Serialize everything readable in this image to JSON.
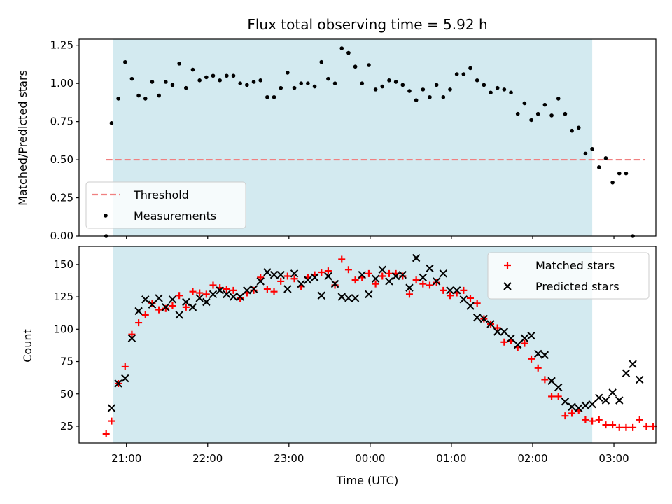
{
  "title": "Flux total observing time = 5.92 h",
  "colors": {
    "observing_band": "#d3eaf0",
    "threshold": "#f08080",
    "measurement": "#000000",
    "matched": "#ff0000",
    "predicted": "#000000"
  },
  "chart_data": [
    {
      "type": "scatter",
      "panel": "top",
      "ylabel": "Matched/Predicted stars",
      "xlim": [
        "20:25",
        "03:31"
      ],
      "ylim": [
        0,
        1.29
      ],
      "yticks": [
        0.0,
        0.25,
        0.5,
        0.75,
        1.0,
        1.25
      ],
      "ytick_labels": [
        "0.00",
        "0.25",
        "0.50",
        "0.75",
        "1.00",
        "1.25"
      ],
      "observing_band": [
        "20:50",
        "02:44"
      ],
      "threshold": {
        "name": "Threshold",
        "value": 0.5,
        "x_range": [
          "20:45",
          "03:23"
        ]
      },
      "legend": {
        "location": "lower-left",
        "entries": [
          "Threshold",
          "Measurements"
        ]
      },
      "series": [
        {
          "name": "Measurements",
          "points": [
            [
              "20:45",
              0.0
            ],
            [
              "20:49",
              0.74
            ],
            [
              "20:54",
              0.9
            ],
            [
              "20:59",
              1.14
            ],
            [
              "21:04",
              1.03
            ],
            [
              "21:09",
              0.92
            ],
            [
              "21:14",
              0.9
            ],
            [
              "21:19",
              1.01
            ],
            [
              "21:24",
              0.92
            ],
            [
              "21:29",
              1.01
            ],
            [
              "21:34",
              0.99
            ],
            [
              "21:39",
              1.13
            ],
            [
              "21:44",
              0.97
            ],
            [
              "21:49",
              1.09
            ],
            [
              "21:54",
              1.02
            ],
            [
              "21:59",
              1.04
            ],
            [
              "22:04",
              1.05
            ],
            [
              "22:09",
              1.02
            ],
            [
              "22:14",
              1.05
            ],
            [
              "22:19",
              1.05
            ],
            [
              "22:24",
              1.0
            ],
            [
              "22:29",
              0.99
            ],
            [
              "22:34",
              1.01
            ],
            [
              "22:39",
              1.02
            ],
            [
              "22:44",
              0.91
            ],
            [
              "22:49",
              0.91
            ],
            [
              "22:54",
              0.97
            ],
            [
              "22:59",
              1.07
            ],
            [
              "23:04",
              0.97
            ],
            [
              "23:09",
              1.0
            ],
            [
              "23:14",
              1.0
            ],
            [
              "23:19",
              0.98
            ],
            [
              "23:24",
              1.14
            ],
            [
              "23:29",
              1.03
            ],
            [
              "23:34",
              1.0
            ],
            [
              "23:39",
              1.23
            ],
            [
              "23:44",
              1.2
            ],
            [
              "23:49",
              1.11
            ],
            [
              "23:54",
              1.0
            ],
            [
              "23:59",
              1.12
            ],
            [
              "00:04",
              0.96
            ],
            [
              "00:09",
              0.98
            ],
            [
              "00:14",
              1.02
            ],
            [
              "00:19",
              1.01
            ],
            [
              "00:24",
              0.99
            ],
            [
              "00:29",
              0.95
            ],
            [
              "00:34",
              0.89
            ],
            [
              "00:39",
              0.96
            ],
            [
              "00:44",
              0.91
            ],
            [
              "00:49",
              0.99
            ],
            [
              "00:54",
              0.91
            ],
            [
              "00:59",
              0.96
            ],
            [
              "01:04",
              1.06
            ],
            [
              "01:09",
              1.06
            ],
            [
              "01:14",
              1.1
            ],
            [
              "01:19",
              1.02
            ],
            [
              "01:24",
              0.99
            ],
            [
              "01:29",
              0.94
            ],
            [
              "01:34",
              0.97
            ],
            [
              "01:39",
              0.96
            ],
            [
              "01:44",
              0.94
            ],
            [
              "01:49",
              0.8
            ],
            [
              "01:54",
              0.87
            ],
            [
              "01:59",
              0.76
            ],
            [
              "02:04",
              0.8
            ],
            [
              "02:09",
              0.86
            ],
            [
              "02:14",
              0.79
            ],
            [
              "02:19",
              0.9
            ],
            [
              "02:24",
              0.8
            ],
            [
              "02:29",
              0.69
            ],
            [
              "02:34",
              0.71
            ],
            [
              "02:39",
              0.54
            ],
            [
              "02:44",
              0.57
            ],
            [
              "02:49",
              0.45
            ],
            [
              "02:54",
              0.51
            ],
            [
              "02:59",
              0.35
            ],
            [
              "03:04",
              0.41
            ],
            [
              "03:09",
              0.41
            ],
            [
              "03:14",
              0.0
            ]
          ]
        }
      ]
    },
    {
      "type": "scatter",
      "panel": "bottom",
      "ylabel": "Count",
      "xlabel": "Time (UTC)",
      "xlim": [
        "20:25",
        "03:31"
      ],
      "ylim": [
        12,
        164
      ],
      "yticks": [
        25,
        50,
        75,
        100,
        125,
        150
      ],
      "ytick_labels": [
        "25",
        "50",
        "75",
        "100",
        "125",
        "150"
      ],
      "xtick_labels": [
        "21:00",
        "22:00",
        "23:00",
        "00:00",
        "01:00",
        "02:00",
        "03:00"
      ],
      "observing_band": [
        "20:50",
        "02:44"
      ],
      "legend": {
        "location": "top-right",
        "entries": [
          "Matched stars",
          "Predicted stars"
        ]
      },
      "series": [
        {
          "name": "Matched stars",
          "marker": "plus",
          "points": [
            [
              "20:45",
              19
            ],
            [
              "20:49",
              29
            ],
            [
              "20:54",
              58
            ],
            [
              "20:59",
              71
            ],
            [
              "21:04",
              96
            ],
            [
              "21:09",
              105
            ],
            [
              "21:14",
              111
            ],
            [
              "21:19",
              120
            ],
            [
              "21:24",
              115
            ],
            [
              "21:29",
              116
            ],
            [
              "21:34",
              118
            ],
            [
              "21:39",
              126
            ],
            [
              "21:44",
              117
            ],
            [
              "21:49",
              129
            ],
            [
              "21:54",
              128
            ],
            [
              "21:59",
              127
            ],
            [
              "22:04",
              134
            ],
            [
              "22:09",
              132
            ],
            [
              "22:14",
              131
            ],
            [
              "22:19",
              130
            ],
            [
              "22:24",
              124
            ],
            [
              "22:29",
              128
            ],
            [
              "22:34",
              130
            ],
            [
              "22:39",
              140
            ],
            [
              "22:44",
              131
            ],
            [
              "22:49",
              129
            ],
            [
              "22:54",
              137
            ],
            [
              "22:59",
              141
            ],
            [
              "23:04",
              139
            ],
            [
              "23:09",
              133
            ],
            [
              "23:14",
              140
            ],
            [
              "23:19",
              142
            ],
            [
              "23:24",
              144
            ],
            [
              "23:29",
              145
            ],
            [
              "23:34",
              134
            ],
            [
              "23:39",
              154
            ],
            [
              "23:44",
              146
            ],
            [
              "23:49",
              138
            ],
            [
              "23:54",
              140
            ],
            [
              "23:59",
              143
            ],
            [
              "00:04",
              135
            ],
            [
              "00:09",
              141
            ],
            [
              "00:14",
              143
            ],
            [
              "00:19",
              143
            ],
            [
              "00:24",
              141
            ],
            [
              "00:29",
              127
            ],
            [
              "00:34",
              138
            ],
            [
              "00:39",
              135
            ],
            [
              "00:44",
              134
            ],
            [
              "00:49",
              136
            ],
            [
              "00:54",
              130
            ],
            [
              "00:59",
              126
            ],
            [
              "01:04",
              128
            ],
            [
              "01:09",
              130
            ],
            [
              "01:14",
              124
            ],
            [
              "01:19",
              120
            ],
            [
              "01:24",
              108
            ],
            [
              "01:29",
              104
            ],
            [
              "01:34",
              101
            ],
            [
              "01:39",
              90
            ],
            [
              "01:44",
              91
            ],
            [
              "01:49",
              86
            ],
            [
              "01:54",
              89
            ],
            [
              "01:59",
              77
            ],
            [
              "02:04",
              70
            ],
            [
              "02:09",
              61
            ],
            [
              "02:14",
              48
            ],
            [
              "02:19",
              48
            ],
            [
              "02:24",
              33
            ],
            [
              "02:29",
              35
            ],
            [
              "02:34",
              37
            ],
            [
              "02:39",
              30
            ],
            [
              "02:44",
              29
            ],
            [
              "02:49",
              30
            ],
            [
              "02:54",
              26
            ],
            [
              "02:59",
              26
            ],
            [
              "03:04",
              24
            ],
            [
              "03:09",
              24
            ],
            [
              "03:14",
              24
            ],
            [
              "03:19",
              30
            ],
            [
              "03:24",
              25
            ],
            [
              "03:29",
              25
            ]
          ]
        },
        {
          "name": "Predicted stars",
          "marker": "x",
          "points": [
            [
              "20:49",
              39
            ],
            [
              "20:54",
              58
            ],
            [
              "20:59",
              62
            ],
            [
              "21:04",
              93
            ],
            [
              "21:09",
              114
            ],
            [
              "21:14",
              123
            ],
            [
              "21:19",
              119
            ],
            [
              "21:24",
              124
            ],
            [
              "21:29",
              117
            ],
            [
              "21:34",
              123
            ],
            [
              "21:39",
              111
            ],
            [
              "21:44",
              121
            ],
            [
              "21:49",
              117
            ],
            [
              "21:54",
              124
            ],
            [
              "21:59",
              121
            ],
            [
              "22:04",
              127
            ],
            [
              "22:09",
              130
            ],
            [
              "22:14",
              127
            ],
            [
              "22:19",
              125
            ],
            [
              "22:24",
              125
            ],
            [
              "22:29",
              130
            ],
            [
              "22:34",
              131
            ],
            [
              "22:39",
              137
            ],
            [
              "22:44",
              144
            ],
            [
              "22:49",
              142
            ],
            [
              "22:54",
              142
            ],
            [
              "22:59",
              131
            ],
            [
              "23:04",
              143
            ],
            [
              "23:09",
              135
            ],
            [
              "23:14",
              138
            ],
            [
              "23:19",
              140
            ],
            [
              "23:24",
              126
            ],
            [
              "23:29",
              141
            ],
            [
              "23:34",
              135
            ],
            [
              "23:39",
              125
            ],
            [
              "23:44",
              124
            ],
            [
              "23:49",
              124
            ],
            [
              "23:54",
              142
            ],
            [
              "23:59",
              127
            ],
            [
              "00:04",
              139
            ],
            [
              "00:09",
              146
            ],
            [
              "00:14",
              137
            ],
            [
              "00:19",
              141
            ],
            [
              "00:24",
              142
            ],
            [
              "00:29",
              132
            ],
            [
              "00:34",
              155
            ],
            [
              "00:39",
              140
            ],
            [
              "00:44",
              147
            ],
            [
              "00:49",
              137
            ],
            [
              "00:54",
              143
            ],
            [
              "00:59",
              130
            ],
            [
              "01:04",
              130
            ],
            [
              "01:09",
              123
            ],
            [
              "01:14",
              118
            ],
            [
              "01:19",
              109
            ],
            [
              "01:24",
              108
            ],
            [
              "01:29",
              104
            ],
            [
              "01:34",
              98
            ],
            [
              "01:39",
              98
            ],
            [
              "01:44",
              93
            ],
            [
              "01:49",
              88
            ],
            [
              "01:54",
              93
            ],
            [
              "01:59",
              95
            ],
            [
              "02:04",
              81
            ],
            [
              "02:09",
              80
            ],
            [
              "02:14",
              60
            ],
            [
              "02:19",
              55
            ],
            [
              "02:24",
              44
            ],
            [
              "02:29",
              40
            ],
            [
              "02:34",
              39
            ],
            [
              "02:39",
              41
            ],
            [
              "02:44",
              42
            ],
            [
              "02:49",
              47
            ],
            [
              "02:54",
              45
            ],
            [
              "02:59",
              51
            ],
            [
              "03:04",
              45
            ],
            [
              "03:09",
              66
            ],
            [
              "03:14",
              73
            ],
            [
              "03:19",
              61
            ]
          ]
        }
      ]
    }
  ]
}
